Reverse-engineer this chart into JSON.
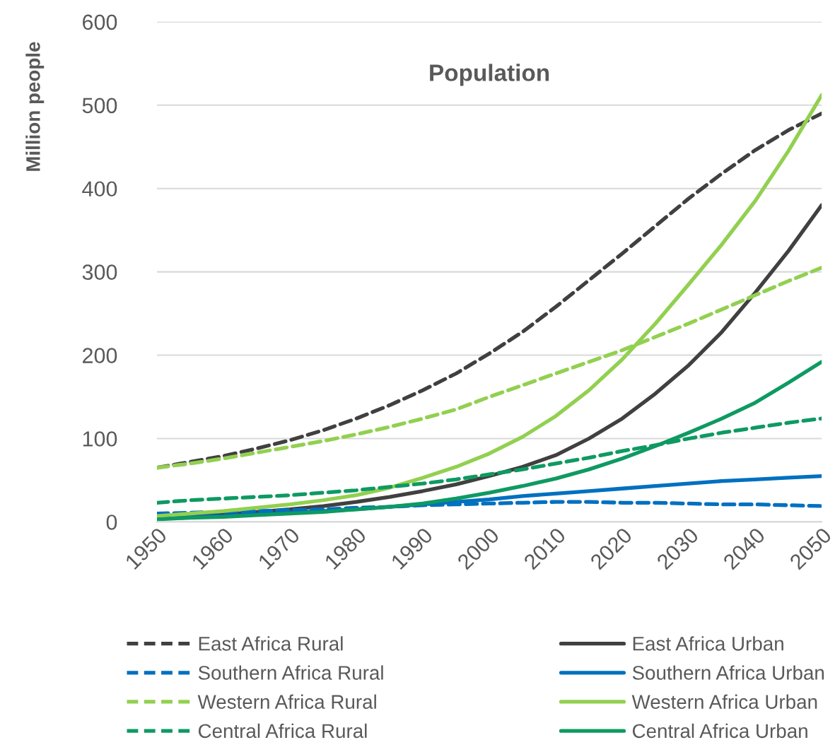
{
  "chart_data": {
    "type": "line",
    "title": "Population",
    "ylabel": "Million people",
    "x": [
      1950,
      1955,
      1960,
      1965,
      1970,
      1975,
      1980,
      1985,
      1990,
      1995,
      2000,
      2005,
      2010,
      2015,
      2020,
      2025,
      2030,
      2035,
      2040,
      2045,
      2050
    ],
    "xlim": [
      1950,
      2050
    ],
    "xticks": [
      1950,
      1960,
      1970,
      1980,
      1990,
      2000,
      2010,
      2020,
      2030,
      2040,
      2050
    ],
    "ylim": [
      0,
      600
    ],
    "yticks": [
      0,
      100,
      200,
      300,
      400,
      500,
      600
    ],
    "grid": "y",
    "legend": "bottom",
    "marker": "none",
    "series": [
      {
        "name": "East Africa Rural",
        "color": "#404040",
        "line_style": "dashed",
        "values": [
          65,
          72,
          79,
          88,
          98,
          110,
          124,
          140,
          158,
          178,
          202,
          228,
          258,
          290,
          322,
          355,
          388,
          418,
          446,
          470,
          490
        ]
      },
      {
        "name": "East Africa Urban",
        "color": "#404040",
        "line_style": "solid",
        "values": [
          5,
          7,
          9,
          12,
          15,
          19,
          24,
          30,
          37,
          45,
          55,
          66,
          80,
          100,
          124,
          154,
          188,
          228,
          275,
          325,
          380
        ]
      },
      {
        "name": "Southern Africa Rural",
        "color": "#0070c0",
        "line_style": "dashed",
        "values": [
          10,
          11,
          12,
          13,
          14,
          15,
          17,
          18,
          20,
          21,
          22,
          23,
          24,
          24,
          23,
          23,
          22,
          21,
          21,
          20,
          19
        ]
      },
      {
        "name": "Southern Africa Urban",
        "color": "#0070c0",
        "line_style": "solid",
        "values": [
          5,
          6,
          7,
          9,
          11,
          13,
          15,
          18,
          21,
          24,
          27,
          31,
          34,
          37,
          40,
          43,
          46,
          49,
          51,
          53,
          55
        ]
      },
      {
        "name": "Western Africa Rural",
        "color": "#92d050",
        "line_style": "dashed",
        "values": [
          65,
          70,
          76,
          83,
          90,
          97,
          105,
          114,
          124,
          135,
          150,
          164,
          178,
          192,
          206,
          222,
          238,
          255,
          272,
          289,
          305
        ]
      },
      {
        "name": "Western Africa Urban",
        "color": "#92d050",
        "line_style": "solid",
        "values": [
          7,
          10,
          13,
          17,
          21,
          26,
          32,
          41,
          53,
          66,
          82,
          102,
          127,
          158,
          195,
          238,
          285,
          333,
          385,
          445,
          512
        ]
      },
      {
        "name": "Central Africa Rural",
        "color": "#0e9a62",
        "line_style": "dashed",
        "values": [
          23,
          26,
          28,
          30,
          32,
          35,
          38,
          42,
          46,
          51,
          57,
          63,
          70,
          77,
          85,
          92,
          100,
          107,
          113,
          119,
          124
        ]
      },
      {
        "name": "Central Africa Urban",
        "color": "#0e9a62",
        "line_style": "solid",
        "values": [
          3,
          5,
          6,
          8,
          10,
          12,
          15,
          18,
          22,
          28,
          35,
          43,
          52,
          63,
          76,
          91,
          107,
          124,
          143,
          167,
          192
        ]
      }
    ]
  }
}
